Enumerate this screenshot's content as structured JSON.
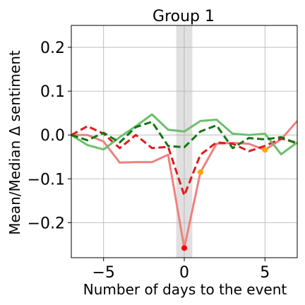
{
  "chart_data": {
    "type": "line",
    "title": "Group 1",
    "xlabel": "Number of days to the event",
    "ylabel": "Mean/Median Δ sentiment",
    "xlim": [
      -7,
      7
    ],
    "ylim": [
      -0.28,
      0.25
    ],
    "xticks": [
      -5,
      0,
      5
    ],
    "xtick_labels": [
      "−5",
      "0",
      "5"
    ],
    "yticks": [
      0.2,
      0.1,
      0.0,
      -0.1,
      -0.2
    ],
    "ytick_labels": [
      "0.2",
      "0.1",
      "0.0",
      "−0.1",
      "−0.2"
    ],
    "grid": true,
    "shaded_region": {
      "x": [
        -0.5,
        0.5
      ],
      "color": "#e0e0e0"
    },
    "series": [
      {
        "style": "solid",
        "color": "#f08080",
        "x": [
          -7,
          -6,
          -5,
          -4,
          -3,
          -2,
          -1,
          0,
          1,
          2,
          3,
          4,
          5,
          6,
          7
        ],
        "y": [
          0.0,
          0.0,
          -0.015,
          -0.063,
          -0.062,
          -0.062,
          -0.045,
          -0.258,
          -0.085,
          -0.02,
          -0.018,
          -0.02,
          -0.034,
          -0.01,
          0.032
        ]
      },
      {
        "style": "dashed",
        "color": "#e31a1c",
        "x": [
          -7,
          -6,
          -5,
          -4,
          -3,
          -2,
          -1,
          0,
          1,
          2,
          3,
          4,
          5,
          6,
          7
        ],
        "y": [
          0.0,
          0.02,
          0.003,
          -0.03,
          0.0,
          -0.03,
          -0.027,
          -0.138,
          -0.045,
          -0.017,
          -0.02,
          -0.037,
          -0.025,
          -0.008,
          -0.018
        ]
      },
      {
        "style": "solid",
        "color": "#6dbf6d",
        "x": [
          -7,
          -6,
          -5,
          -4,
          -3,
          -2,
          -1,
          0,
          1,
          2,
          3,
          4,
          5,
          6,
          7
        ],
        "y": [
          0.0,
          -0.023,
          -0.033,
          -0.005,
          0.02,
          0.047,
          0.012,
          0.008,
          0.032,
          0.035,
          0.003,
          0.0,
          0.003,
          -0.044,
          -0.017
        ]
      },
      {
        "style": "dashed",
        "color": "#117711",
        "x": [
          -7,
          -6,
          -5,
          -4,
          -3,
          -2,
          -1,
          0,
          1,
          2,
          3,
          4,
          5,
          6,
          7
        ],
        "y": [
          0.0,
          -0.012,
          0.005,
          -0.017,
          0.018,
          0.03,
          -0.025,
          -0.028,
          0.008,
          0.022,
          -0.03,
          -0.007,
          -0.01,
          -0.005,
          -0.02
        ]
      }
    ],
    "markers": [
      {
        "x": 0,
        "y": -0.258,
        "color": "#ff0000"
      },
      {
        "x": 1,
        "y": -0.085,
        "color": "#ffa500"
      },
      {
        "x": 5,
        "y": -0.034,
        "color": "#ffa500"
      }
    ]
  }
}
